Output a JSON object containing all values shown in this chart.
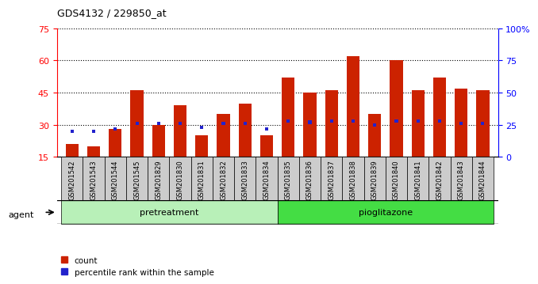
{
  "title": "GDS4132 / 229850_at",
  "samples": [
    "GSM201542",
    "GSM201543",
    "GSM201544",
    "GSM201545",
    "GSM201829",
    "GSM201830",
    "GSM201831",
    "GSM201832",
    "GSM201833",
    "GSM201834",
    "GSM201835",
    "GSM201836",
    "GSM201837",
    "GSM201838",
    "GSM201839",
    "GSM201840",
    "GSM201841",
    "GSM201842",
    "GSM201843",
    "GSM201844"
  ],
  "count_values": [
    21,
    20,
    28,
    46,
    30,
    39,
    25,
    35,
    40,
    25,
    52,
    45,
    46,
    62,
    35,
    60,
    46,
    52,
    47,
    46
  ],
  "percentile_values": [
    20,
    20,
    22,
    26,
    26,
    26,
    23,
    26,
    26,
    22,
    28,
    27,
    28,
    28,
    25,
    28,
    28,
    28,
    26,
    26
  ],
  "groups": [
    {
      "label": "pretreatment",
      "start": 0,
      "end": 10,
      "color": "#b8f0b8"
    },
    {
      "label": "pioglitazone",
      "start": 10,
      "end": 20,
      "color": "#44dd44"
    }
  ],
  "ylim_left": [
    15,
    75
  ],
  "ylim_right": [
    0,
    100
  ],
  "yticks_left": [
    15,
    30,
    45,
    60,
    75
  ],
  "yticks_right": [
    0,
    25,
    50,
    75,
    100
  ],
  "yticklabels_right": [
    "0",
    "25",
    "50",
    "75",
    "100%"
  ],
  "bar_color_red": "#cc2200",
  "bar_color_blue": "#2222cc",
  "bar_width": 0.6,
  "tick_bg_color": "#cccccc",
  "agent_label": "agent",
  "legend_count": "count",
  "legend_percentile": "percentile rank within the sample"
}
